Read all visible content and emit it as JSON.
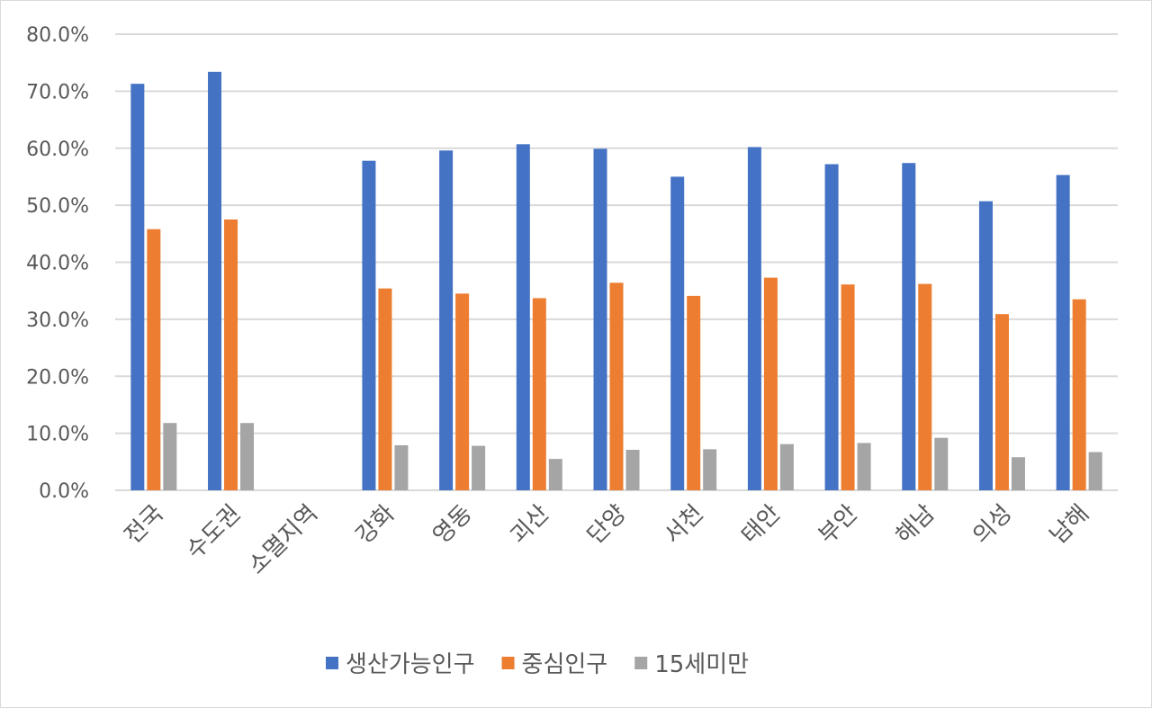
{
  "chart_data": {
    "type": "bar",
    "categories": [
      "전국",
      "수도권",
      "소멸지역",
      "강화",
      "영동",
      "괴산",
      "단양",
      "서천",
      "태안",
      "부안",
      "해남",
      "의성",
      "남해"
    ],
    "series": [
      {
        "name": "생산가능인구",
        "color": "#4472C4",
        "values": [
          71.3,
          73.4,
          null,
          57.8,
          59.6,
          60.7,
          59.9,
          55.0,
          60.2,
          57.2,
          57.4,
          50.7,
          55.3
        ]
      },
      {
        "name": "중심인구",
        "color": "#ED7D31",
        "values": [
          45.8,
          47.5,
          null,
          35.4,
          34.5,
          33.7,
          36.4,
          34.1,
          37.3,
          36.1,
          36.2,
          30.9,
          33.5
        ]
      },
      {
        "name": "15세미만",
        "color": "#A5A5A5",
        "values": [
          11.8,
          11.8,
          null,
          7.9,
          7.8,
          5.5,
          7.1,
          7.2,
          8.1,
          8.3,
          9.2,
          5.8,
          6.7
        ]
      }
    ],
    "yticks": [
      "0.0%",
      "10.0%",
      "20.0%",
      "30.0%",
      "40.0%",
      "50.0%",
      "60.0%",
      "70.0%",
      "80.0%"
    ],
    "ylim": [
      0,
      80
    ],
    "grid": true,
    "legend_position": "bottom",
    "gridline_color": "#D9D9D9"
  }
}
